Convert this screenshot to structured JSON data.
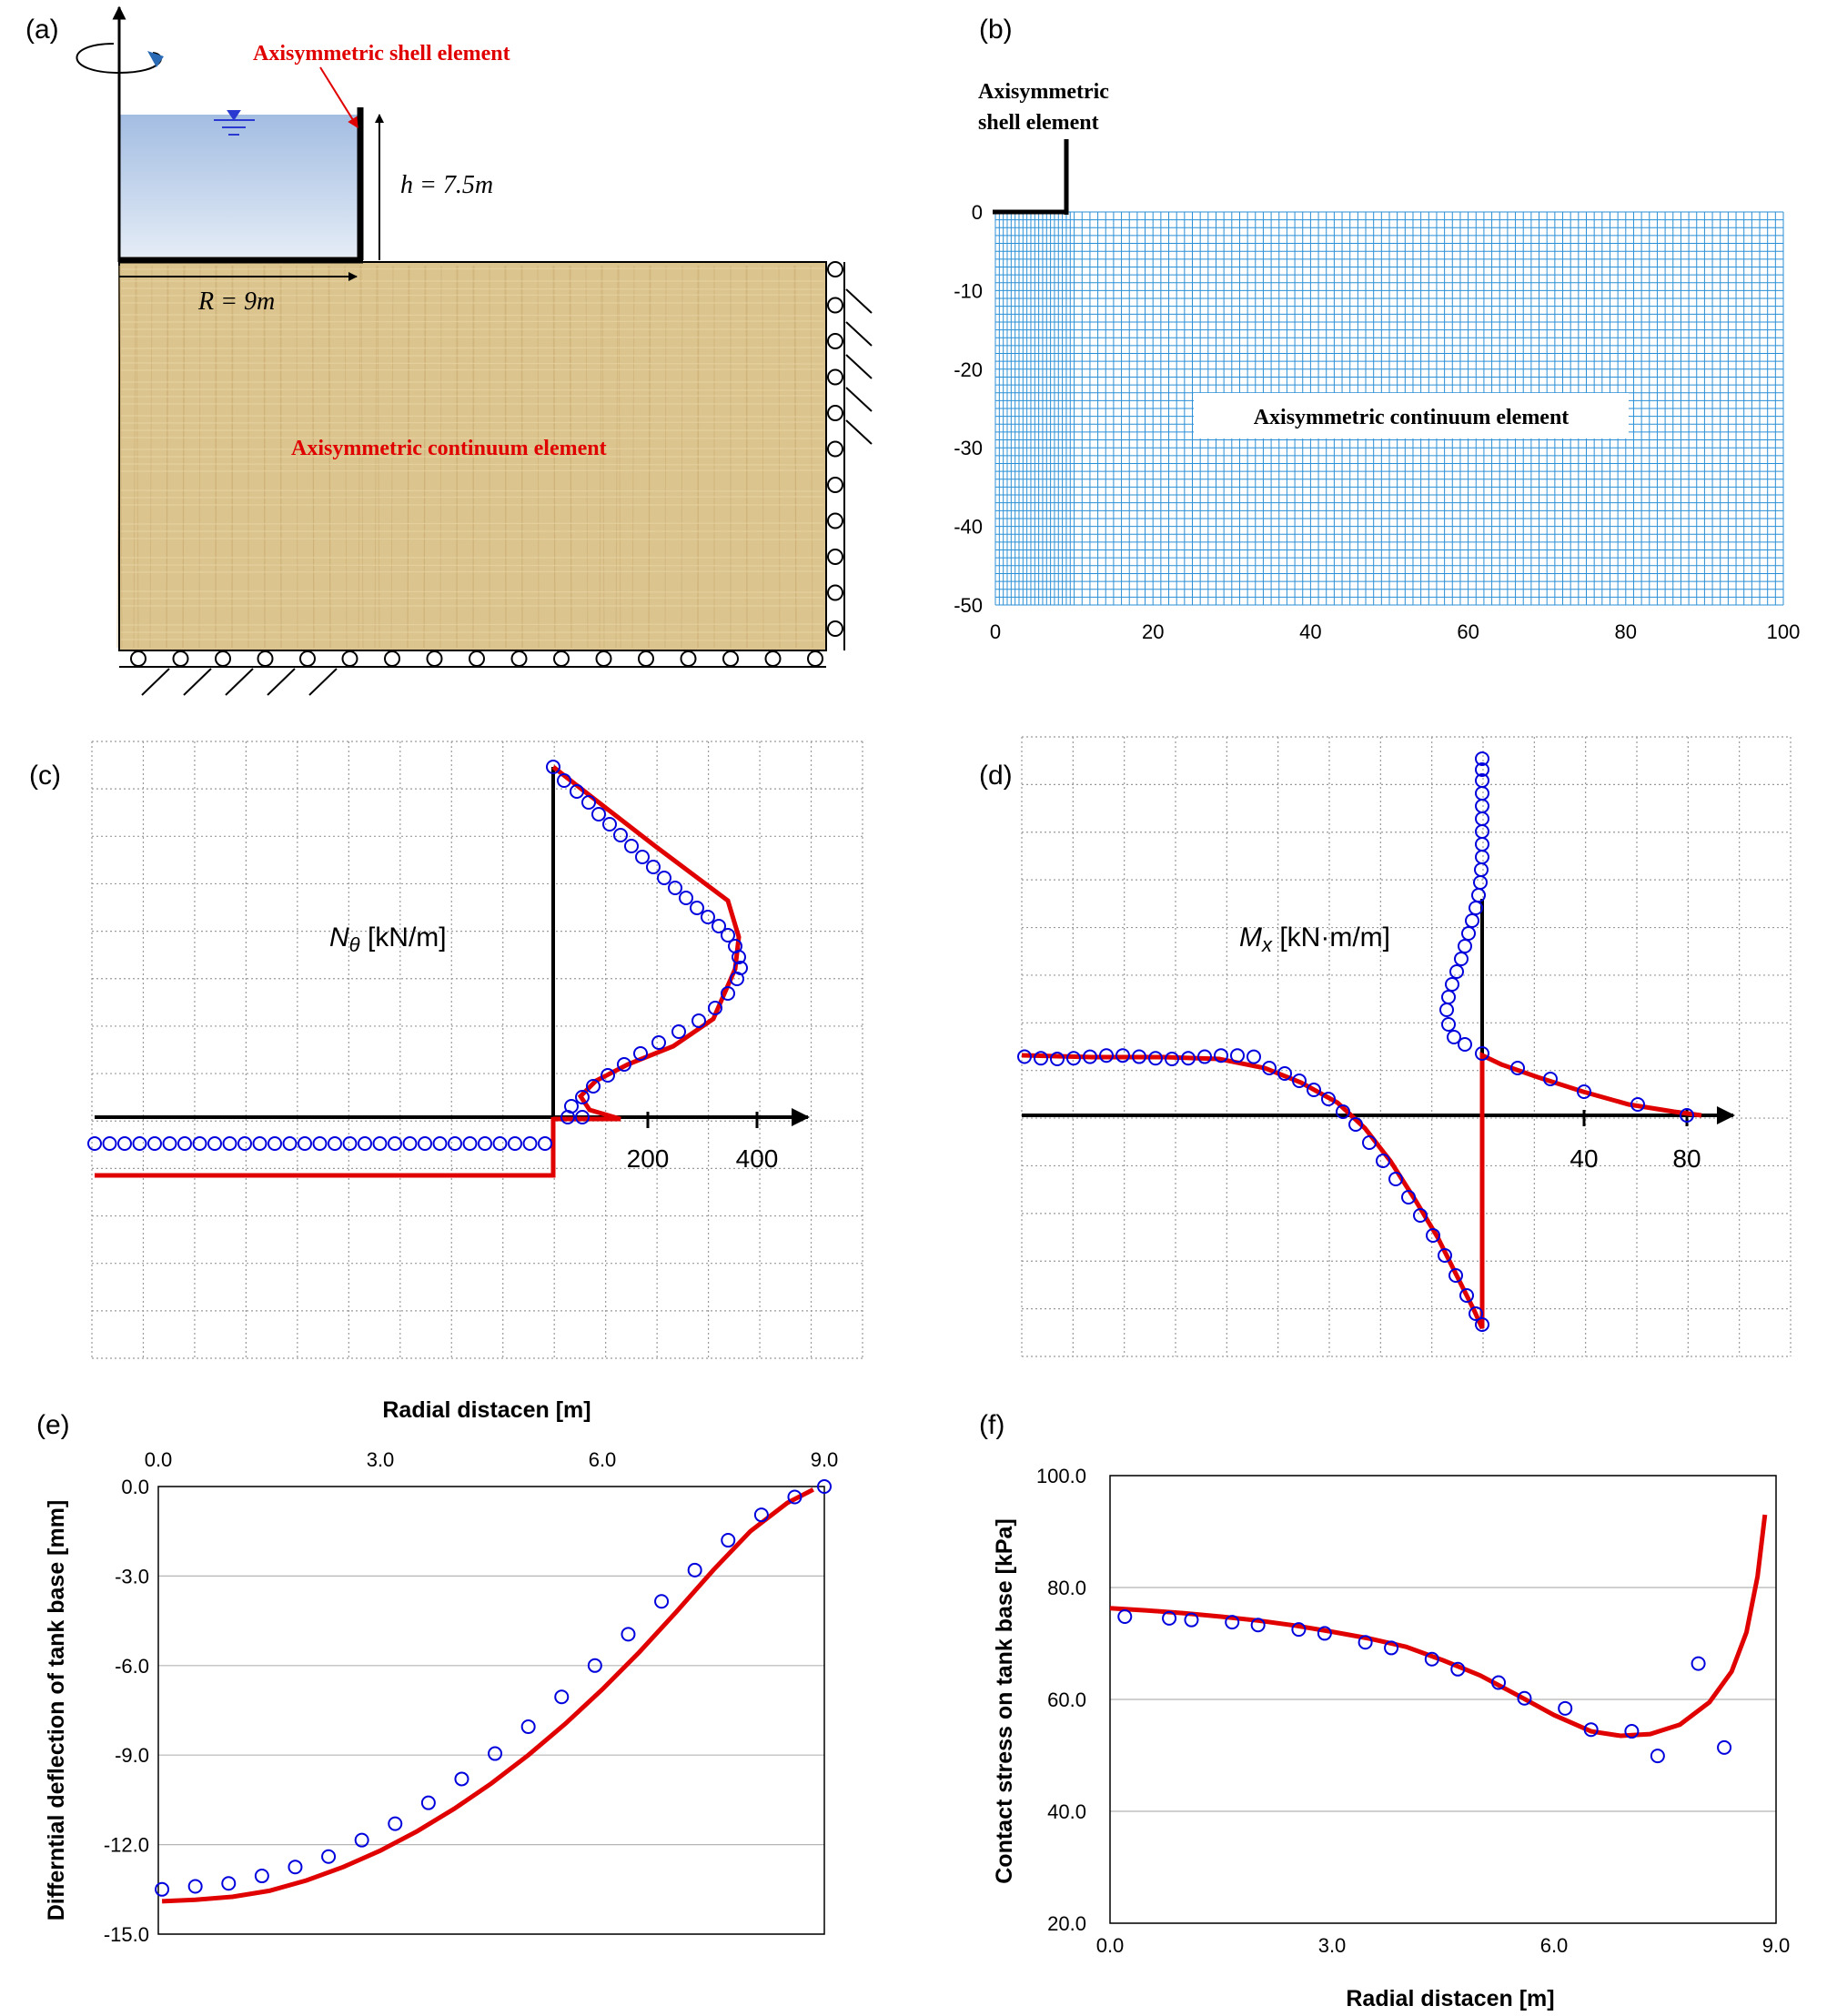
{
  "panel_labels": [
    "(a)",
    "(b)",
    "(c)",
    "(d)",
    "(e)",
    "(f)"
  ],
  "colors": {
    "series_model": "#e00000",
    "series_marker": "#0000dd",
    "mesh": "#2a8fd6",
    "soil": "#dcc48e",
    "water": "#a9c2e4"
  },
  "panel_a": {
    "shell_label": "Axisymmetric shell element",
    "continuum_label": "Axisymmetric continuum element",
    "h_label": "h = 7.5m",
    "r_label": "R = 9m"
  },
  "chart_data": [
    {
      "panel": "(b)",
      "type": "mesh",
      "shell_label_lines": [
        "Axisymmetric",
        "shell element"
      ],
      "continuum_label": "Axisymmetric continuum element",
      "x_ticks": [
        0,
        20,
        40,
        60,
        80,
        100
      ],
      "y_ticks": [
        0,
        -10,
        -20,
        -30,
        -40,
        -50
      ],
      "xlim": [
        0,
        100
      ],
      "ylim": [
        -50,
        0
      ],
      "grid": true
    },
    {
      "panel": "(c)",
      "type": "line",
      "label_symbol": "N",
      "label_sub": "θ",
      "label_unit": " [kN/m]",
      "x_ticks": [
        "200",
        "400"
      ],
      "grid": true
    },
    {
      "panel": "(d)",
      "type": "line",
      "label_symbol": "M",
      "label_sub": "x",
      "label_unit": " [kN·m/m]",
      "x_ticks": [
        "40",
        "80"
      ],
      "grid": true
    },
    {
      "panel": "(e)",
      "type": "scatter",
      "xlabel": "Radial distacen [m]",
      "ylabel": "Differntial deflection of tank base [mm]",
      "x_ticks": [
        "0.0",
        "3.0",
        "6.0",
        "9.0"
      ],
      "y_ticks": [
        "0.0",
        "-3.0",
        "-6.0",
        "-9.0",
        "-12.0",
        "-15.0"
      ],
      "xlim": [
        0,
        9
      ],
      "ylim": [
        -15,
        0
      ],
      "series": [
        {
          "values": [
            [
              0.05,
              -13.9
            ],
            [
              0.5,
              -13.85
            ],
            [
              1.0,
              -13.75
            ],
            [
              1.5,
              -13.55
            ],
            [
              2.0,
              -13.2
            ],
            [
              2.5,
              -12.75
            ],
            [
              3.0,
              -12.2
            ],
            [
              3.5,
              -11.55
            ],
            [
              4.0,
              -10.8
            ],
            [
              4.5,
              -9.95
            ],
            [
              5.0,
              -9.0
            ],
            [
              5.5,
              -7.95
            ],
            [
              6.0,
              -6.8
            ],
            [
              6.5,
              -5.55
            ],
            [
              7.0,
              -4.2
            ],
            [
              7.5,
              -2.8
            ],
            [
              8.0,
              -1.5
            ],
            [
              8.5,
              -0.55
            ],
            [
              8.85,
              -0.1
            ]
          ]
        },
        {
          "values": [
            [
              0.05,
              -13.5
            ],
            [
              0.5,
              -13.4
            ],
            [
              0.95,
              -13.3
            ],
            [
              1.4,
              -13.05
            ],
            [
              1.85,
              -12.75
            ],
            [
              2.3,
              -12.4
            ],
            [
              2.75,
              -11.85
            ],
            [
              3.2,
              -11.3
            ],
            [
              3.65,
              -10.6
            ],
            [
              4.1,
              -9.8
            ],
            [
              4.55,
              -8.95
            ],
            [
              5.0,
              -8.05
            ],
            [
              5.45,
              -7.05
            ],
            [
              5.9,
              -6.0
            ],
            [
              6.35,
              -4.95
            ],
            [
              6.8,
              -3.85
            ],
            [
              7.25,
              -2.8
            ],
            [
              7.7,
              -1.8
            ],
            [
              8.15,
              -0.95
            ],
            [
              8.6,
              -0.35
            ],
            [
              9.0,
              0.0
            ]
          ]
        }
      ]
    },
    {
      "panel": "(f)",
      "type": "scatter",
      "xlabel": "Radial distacen [m]",
      "ylabel": "Contact stress on tank base [kPa]",
      "x_ticks": [
        "0.0",
        "3.0",
        "6.0",
        "9.0"
      ],
      "y_ticks": [
        "100.0",
        "80.0",
        "60.0",
        "40.0",
        "20.0"
      ],
      "xlim": [
        0,
        9
      ],
      "ylim": [
        20,
        100
      ],
      "series": [
        {
          "values": [
            [
              0.0,
              76.3
            ],
            [
              0.5,
              75.9
            ],
            [
              1.0,
              75.4
            ],
            [
              1.5,
              74.8
            ],
            [
              2.0,
              74.1
            ],
            [
              2.5,
              73.2
            ],
            [
              3.0,
              72.1
            ],
            [
              3.5,
              70.9
            ],
            [
              4.0,
              69.4
            ],
            [
              4.5,
              67.0
            ],
            [
              5.0,
              64.3
            ],
            [
              5.5,
              60.8
            ],
            [
              6.0,
              57.2
            ],
            [
              6.5,
              54.3
            ],
            [
              6.9,
              53.5
            ],
            [
              7.3,
              53.8
            ],
            [
              7.7,
              55.5
            ],
            [
              8.1,
              59.5
            ],
            [
              8.4,
              65.0
            ],
            [
              8.6,
              72.0
            ],
            [
              8.75,
              82.0
            ],
            [
              8.85,
              93.0
            ]
          ]
        },
        {
          "values": [
            [
              0.2,
              74.8
            ],
            [
              0.8,
              74.5
            ],
            [
              1.1,
              74.2
            ],
            [
              1.65,
              73.8
            ],
            [
              2.0,
              73.3
            ],
            [
              2.55,
              72.5
            ],
            [
              2.9,
              71.8
            ],
            [
              3.45,
              70.2
            ],
            [
              3.8,
              69.2
            ],
            [
              4.35,
              67.2
            ],
            [
              4.7,
              65.4
            ],
            [
              5.25,
              63.0
            ],
            [
              5.6,
              60.2
            ],
            [
              6.15,
              58.4
            ],
            [
              6.5,
              54.6
            ],
            [
              7.05,
              54.3
            ],
            [
              7.4,
              49.9
            ],
            [
              7.95,
              66.4
            ],
            [
              8.3,
              51.4
            ]
          ]
        }
      ]
    }
  ]
}
